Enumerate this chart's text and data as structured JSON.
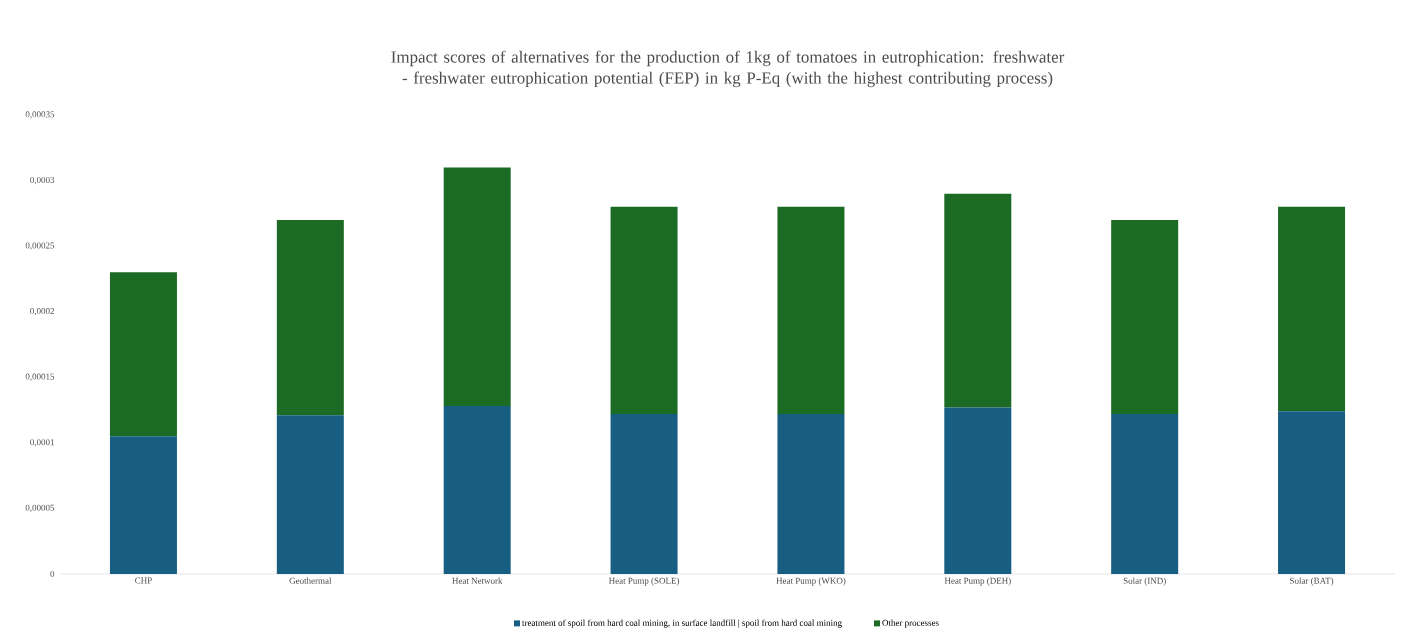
{
  "chart_data": {
    "type": "bar",
    "title": "Impact scores of alternatives for the production of 1kg of tomatoes in eutrophication: freshwater - freshwater eutrophication potential (FEP) in kg P-Eq (with the highest contributing process)",
    "categories": [
      "CHP",
      "Geothermal",
      "Heat Network",
      "Heat Pump (SOLE)",
      "Heat Pump (WKO)",
      "Heat Pump (DEH)",
      "Solar (IND)",
      "Solar (BAT)"
    ],
    "stacked": true,
    "series": [
      {
        "name": "treatment of spoil from hard coal mining, in surface landfill | spoil from hard coal mining",
        "color": "#175e82",
        "values": [
          0.000105,
          0.000121,
          0.000128,
          0.000122,
          0.000122,
          0.000127,
          0.000122,
          0.000124
        ]
      },
      {
        "name": "Other processes",
        "color": "#1b6b24",
        "values": [
          0.000125,
          0.000149,
          0.000182,
          0.000158,
          0.000158,
          0.000163,
          0.000148,
          0.000156
        ]
      }
    ],
    "ylim": [
      0,
      0.00035
    ],
    "yticks": [
      {
        "value": 0,
        "label": "0"
      },
      {
        "value": 5e-05,
        "label": "0,00005"
      },
      {
        "value": 0.0001,
        "label": "0,0001"
      },
      {
        "value": 0.00015,
        "label": "0,00015"
      },
      {
        "value": 0.0002,
        "label": "0,0002"
      },
      {
        "value": 0.00025,
        "label": "0,00025"
      },
      {
        "value": 0.0003,
        "label": "0,0003"
      },
      {
        "value": 0.00035,
        "label": "0,00035"
      }
    ],
    "grid": false,
    "legend": "bottom"
  }
}
